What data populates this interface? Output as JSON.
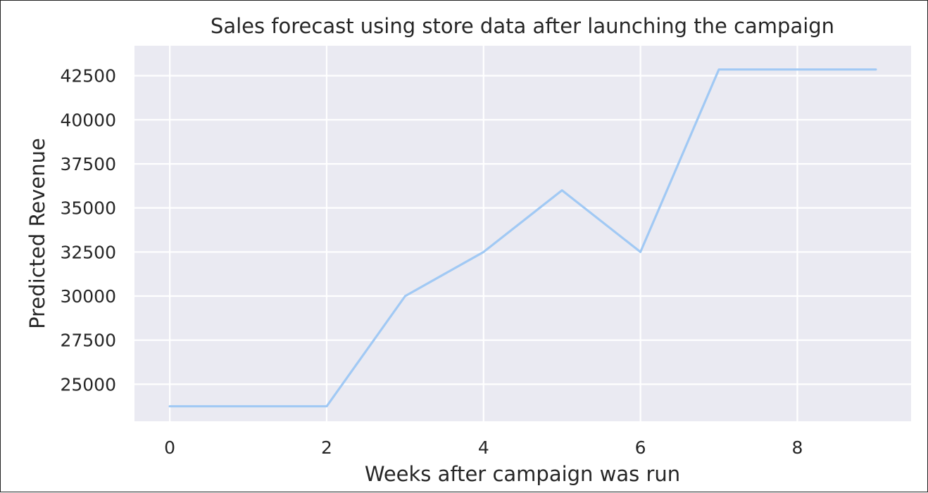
{
  "chart_data": {
    "type": "line",
    "title": "Sales forecast using store data after launching the campaign",
    "xlabel": "Weeks after campaign was run",
    "ylabel": "Predicted Revenue",
    "x": [
      0,
      1,
      2,
      3,
      4,
      5,
      6,
      7,
      8,
      9
    ],
    "series": [
      {
        "values": [
          23750,
          23750,
          23750,
          30000,
          32500,
          36000,
          32500,
          42850,
          42850,
          42850
        ],
        "color": "#a1c9f4"
      }
    ],
    "xlim": [
      -0.45,
      9.45
    ],
    "ylim": [
      22900,
      44200
    ],
    "xticks": [
      0,
      2,
      4,
      6,
      8
    ],
    "yticks": [
      25000,
      27500,
      30000,
      32500,
      35000,
      37500,
      40000,
      42500
    ],
    "grid": true,
    "colors": {
      "plot_background": "#eaeaf2",
      "grid": "#ffffff",
      "text": "#262626"
    }
  }
}
